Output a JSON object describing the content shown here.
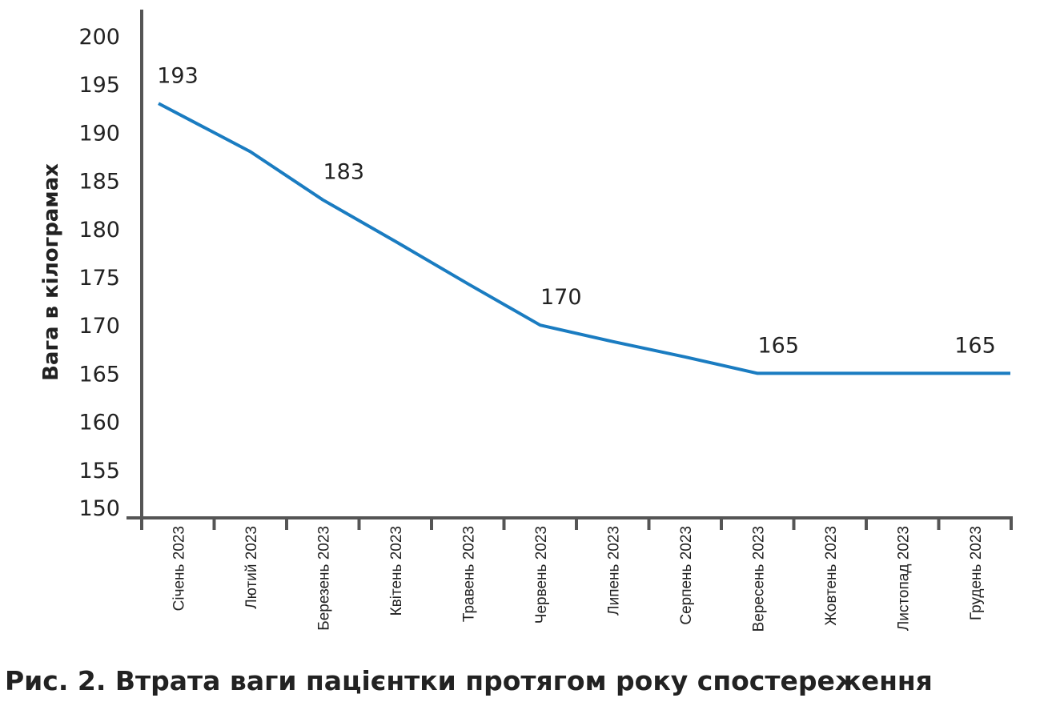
{
  "chart_data": {
    "type": "line",
    "title": "",
    "caption": "Рис. 2. Втрата ваги пацієнтки протягом року спостереження",
    "xlabel": "",
    "ylabel": "Вага в кілограмах",
    "ylim": [
      150,
      200
    ],
    "yticks": [
      150,
      155,
      160,
      165,
      170,
      175,
      180,
      185,
      190,
      195,
      200
    ],
    "grid": false,
    "categories": [
      "Січень 2023",
      "Лютий 2023",
      "Березень 2023",
      "Квітень 2023",
      "Травень 2023",
      "Червень 2023",
      "Липень 2023",
      "Серпень 2023",
      "Вересень 2023",
      "Жовтень 2023",
      "Листопад 2023",
      "Грудень 2023"
    ],
    "series": [
      {
        "name": "Вага",
        "color": "#1a7cc1",
        "values": [
          193,
          188,
          183,
          178.7,
          174.3,
          170,
          168.3,
          166.7,
          165,
          165,
          165,
          165
        ],
        "data_labels": [
          "193",
          null,
          "183",
          null,
          null,
          "170",
          null,
          null,
          "165",
          null,
          null,
          "165"
        ]
      }
    ],
    "axis_color": "#555555"
  }
}
